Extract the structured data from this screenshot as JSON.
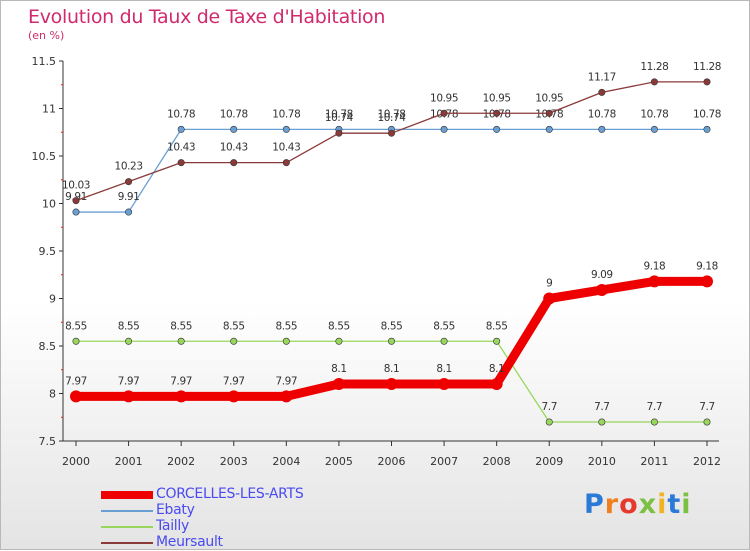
{
  "chart_data": {
    "type": "line",
    "title": "Evolution du Taux de Taxe d'Habitation",
    "subtitle": "(en %)",
    "categories": [
      "2000",
      "2001",
      "2002",
      "2003",
      "2004",
      "2005",
      "2006",
      "2007",
      "2008",
      "2009",
      "2010",
      "2011",
      "2012"
    ],
    "ylim": [
      7.5,
      11.5
    ],
    "yticks": [
      "7.5",
      "8",
      "8.5",
      "9",
      "9.5",
      "10",
      "10.5",
      "11",
      "11.5"
    ],
    "series": [
      {
        "name": "CORCELLES-LES-ARTS",
        "color": "#ee0000",
        "highlight": true,
        "values": [
          7.97,
          7.97,
          7.97,
          7.97,
          7.97,
          8.1,
          8.1,
          8.1,
          8.1,
          9,
          9.09,
          9.18,
          9.18
        ],
        "labels": [
          "7.97",
          "7.97",
          "7.97",
          "7.97",
          "7.97",
          "8.1",
          "8.1",
          "8.1",
          "8.1",
          "9",
          "9.09",
          "9.18",
          "9.18"
        ]
      },
      {
        "name": "Ebaty",
        "color": "#6a9fd3",
        "highlight": false,
        "values": [
          9.91,
          9.91,
          10.78,
          10.78,
          10.78,
          10.78,
          10.78,
          10.78,
          10.78,
          10.78,
          10.78,
          10.78,
          10.78
        ],
        "labels": [
          "9.91",
          "9.91",
          "10.78",
          "10.78",
          "10.78",
          "10.78",
          "10.78",
          "10.78",
          "10.78",
          "10.78",
          "10.78",
          "10.78",
          "10.78"
        ]
      },
      {
        "name": "Tailly",
        "color": "#99d65e",
        "highlight": false,
        "values": [
          8.55,
          8.55,
          8.55,
          8.55,
          8.55,
          8.55,
          8.55,
          8.55,
          8.55,
          7.7,
          7.7,
          7.7,
          7.7
        ],
        "labels": [
          "8.55",
          "8.55",
          "8.55",
          "8.55",
          "8.55",
          "8.55",
          "8.55",
          "8.55",
          "8.55",
          "7.7",
          "7.7",
          "7.7",
          "7.7"
        ]
      },
      {
        "name": "Meursault",
        "color": "#8b3a3a",
        "highlight": false,
        "values": [
          10.03,
          10.23,
          10.43,
          10.43,
          10.43,
          10.74,
          10.74,
          10.95,
          10.95,
          10.95,
          11.17,
          11.28,
          11.28
        ],
        "labels": [
          "10.03",
          "10.23",
          "10.43",
          "10.43",
          "10.43",
          "10.74",
          "10.74",
          "10.95",
          "10.95",
          "10.95",
          "11.17",
          "11.28",
          "11.28"
        ]
      }
    ]
  },
  "legend": [
    {
      "label": "CORCELLES-LES-ARTS",
      "color": "#ee0000"
    },
    {
      "label": "Ebaty",
      "color": "#6a9fd3"
    },
    {
      "label": "Tailly",
      "color": "#99d65e"
    },
    {
      "label": "Meursault",
      "color": "#8b3a3a"
    }
  ],
  "logo": {
    "text": "Proxiti",
    "colors": [
      "#2b7ad8",
      "#f07f1f",
      "#e63a2e",
      "#7bc043",
      "#f0b323",
      "#2b7ad8",
      "#7bc043"
    ]
  }
}
